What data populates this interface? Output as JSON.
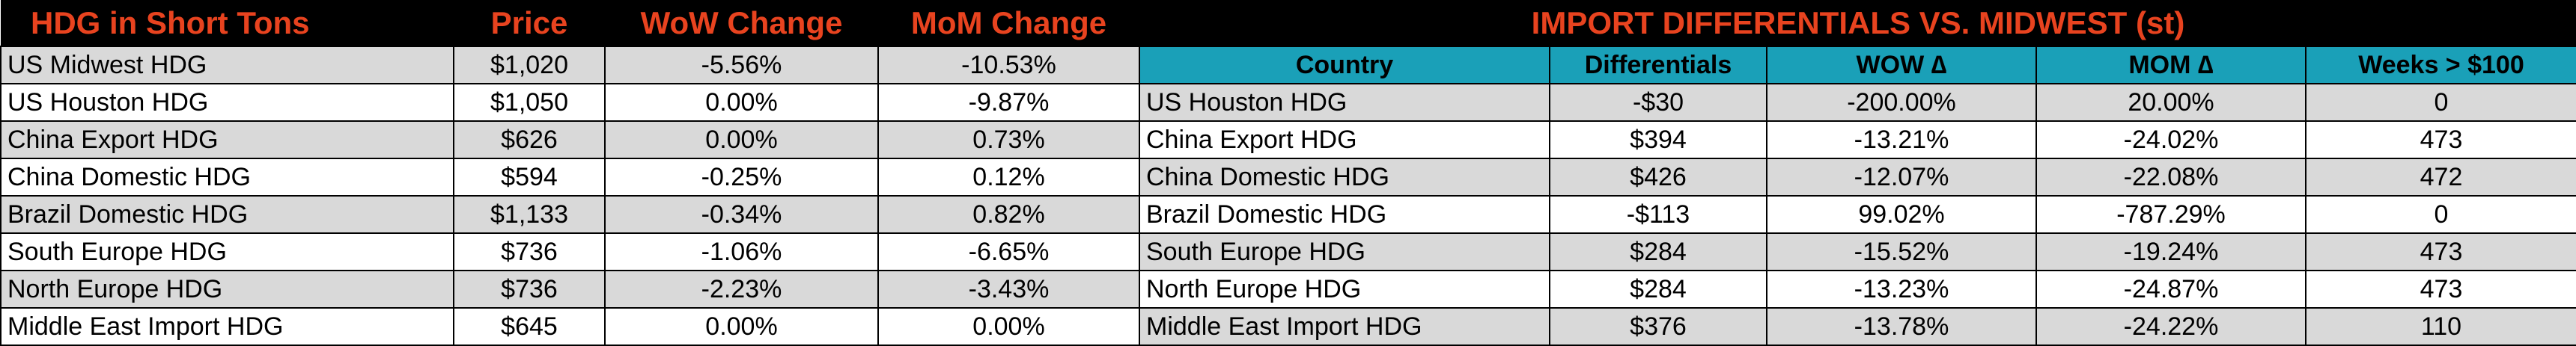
{
  "left_table": {
    "headers": [
      "HDG in Short Tons",
      "Price",
      "WoW Change",
      "MoM Change"
    ],
    "rows": [
      {
        "name": "US Midwest HDG",
        "price": "$1,020",
        "wow": "-5.56%",
        "mom": "-10.53%"
      },
      {
        "name": "US Houston HDG",
        "price": "$1,050",
        "wow": "0.00%",
        "mom": "-9.87%"
      },
      {
        "name": "China Export HDG",
        "price": "$626",
        "wow": "0.00%",
        "mom": "0.73%"
      },
      {
        "name": "China Domestic HDG",
        "price": "$594",
        "wow": "-0.25%",
        "mom": "0.12%"
      },
      {
        "name": "Brazil Domestic HDG",
        "price": "$1,133",
        "wow": "-0.34%",
        "mom": "0.82%"
      },
      {
        "name": "South Europe HDG",
        "price": "$736",
        "wow": "-1.06%",
        "mom": "-6.65%"
      },
      {
        "name": "North Europe HDG",
        "price": "$736",
        "wow": "-2.23%",
        "mom": "-3.43%"
      },
      {
        "name": "Middle East Import HDG",
        "price": "$645",
        "wow": "0.00%",
        "mom": "0.00%"
      }
    ]
  },
  "right_table": {
    "title": "IMPORT DIFFERENTIALS VS. MIDWEST (st)",
    "headers": [
      "Country",
      "Differentials",
      "WOW ∆",
      "MOM ∆",
      "Weeks > $100"
    ],
    "rows": [
      {
        "country": "US Houston HDG",
        "diff": "-$30",
        "wow": "-200.00%",
        "mom": "20.00%",
        "weeks": "0"
      },
      {
        "country": "China Export HDG",
        "diff": "$394",
        "wow": "-13.21%",
        "mom": "-24.02%",
        "weeks": "473"
      },
      {
        "country": "China Domestic HDG",
        "diff": "$426",
        "wow": "-12.07%",
        "mom": "-22.08%",
        "weeks": "472"
      },
      {
        "country": "Brazil Domestic HDG",
        "diff": "-$113",
        "wow": "99.02%",
        "mom": "-787.29%",
        "weeks": "0"
      },
      {
        "country": "South Europe HDG",
        "diff": "$284",
        "wow": "-15.52%",
        "mom": "-19.24%",
        "weeks": "473"
      },
      {
        "country": "North Europe HDG",
        "diff": "$284",
        "wow": "-13.23%",
        "mom": "-24.87%",
        "weeks": "473"
      },
      {
        "country": "Middle East Import HDG",
        "diff": "$376",
        "wow": "-13.78%",
        "mom": "-24.22%",
        "weeks": "110"
      }
    ]
  },
  "colors": {
    "title_text": "#e8431f",
    "title_bg": "#000000",
    "subheader_bg": "#1aa0b8",
    "row_grey": "#d9d9d9",
    "row_white": "#ffffff"
  }
}
